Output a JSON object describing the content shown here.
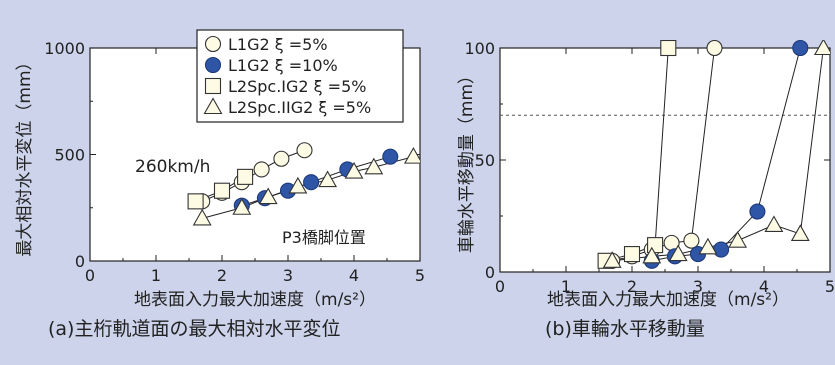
{
  "chart_data": [
    {
      "id": "a",
      "type": "scatter",
      "caption": "(a)主桁軌道面の最大相対水平変位",
      "xlabel": "地表面入力最大加速度（m/s²）",
      "ylabel": "最大相対水平変位（mm）",
      "xlim": [
        0,
        5
      ],
      "ylim": [
        0,
        1000
      ],
      "xticks": [
        "0",
        "1",
        "2",
        "3",
        "4",
        "5"
      ],
      "yticks": [
        "0",
        "500",
        "1000"
      ],
      "grid": false,
      "legend": "top-center",
      "annotations": [
        "260km/h",
        "P3橋脚位置"
      ],
      "series": [
        {
          "name": "L1G2 ξ =5%",
          "marker": "circle-open",
          "x": [
            1.7,
            2.0,
            2.3,
            2.6,
            2.9,
            3.25
          ],
          "y": [
            280,
            320,
            370,
            430,
            480,
            520
          ]
        },
        {
          "name": "L1G2 ξ =10%",
          "marker": "circle-filled",
          "x": [
            2.3,
            2.65,
            3.0,
            3.35,
            3.9,
            4.55
          ],
          "y": [
            260,
            295,
            330,
            370,
            430,
            490
          ]
        },
        {
          "name": "L2Spc.IG2 ξ =5%",
          "marker": "square",
          "x": [
            1.6,
            2.0,
            2.35
          ],
          "y": [
            280,
            330,
            395
          ]
        },
        {
          "name": "L2Spc.IIG2 ξ =5%",
          "marker": "triangle",
          "x": [
            1.7,
            2.3,
            2.7,
            3.15,
            3.6,
            4.0,
            4.3,
            4.9
          ],
          "y": [
            200,
            250,
            300,
            350,
            380,
            420,
            440,
            490
          ]
        }
      ]
    },
    {
      "id": "b",
      "type": "line",
      "caption": "(b)車輪水平移動量",
      "xlabel": "地表面入力最大加速度（m/s²）",
      "ylabel": "車輪水平移動量（mm）",
      "xlim": [
        0,
        5
      ],
      "ylim": [
        0,
        100
      ],
      "xticks": [
        "0",
        "1",
        "2",
        "3",
        "4",
        "5"
      ],
      "yticks": [
        "0",
        "50",
        "100"
      ],
      "grid": false,
      "reference_line": {
        "y": 70,
        "style": "dashed"
      },
      "series": [
        {
          "name": "L1G2 ξ =5%",
          "marker": "circle-open",
          "x": [
            1.7,
            2.0,
            2.3,
            2.6,
            2.9,
            3.25
          ],
          "y": [
            5,
            7,
            10,
            13,
            14,
            100
          ]
        },
        {
          "name": "L1G2 ξ =10%",
          "marker": "circle-filled",
          "x": [
            2.3,
            2.65,
            3.0,
            3.35,
            3.9,
            4.55
          ],
          "y": [
            5,
            7,
            8,
            10,
            27,
            100
          ]
        },
        {
          "name": "L2Spc.IG2 ξ =5%",
          "marker": "square",
          "x": [
            1.6,
            2.0,
            2.35,
            2.55
          ],
          "y": [
            5,
            8,
            12,
            100
          ]
        },
        {
          "name": "L2Spc.IIG2 ξ =5%",
          "marker": "triangle",
          "x": [
            1.7,
            2.3,
            2.7,
            3.15,
            3.6,
            4.15,
            4.55,
            4.9
          ],
          "y": [
            5,
            7,
            8,
            11,
            14,
            21,
            17,
            100
          ]
        }
      ]
    }
  ]
}
